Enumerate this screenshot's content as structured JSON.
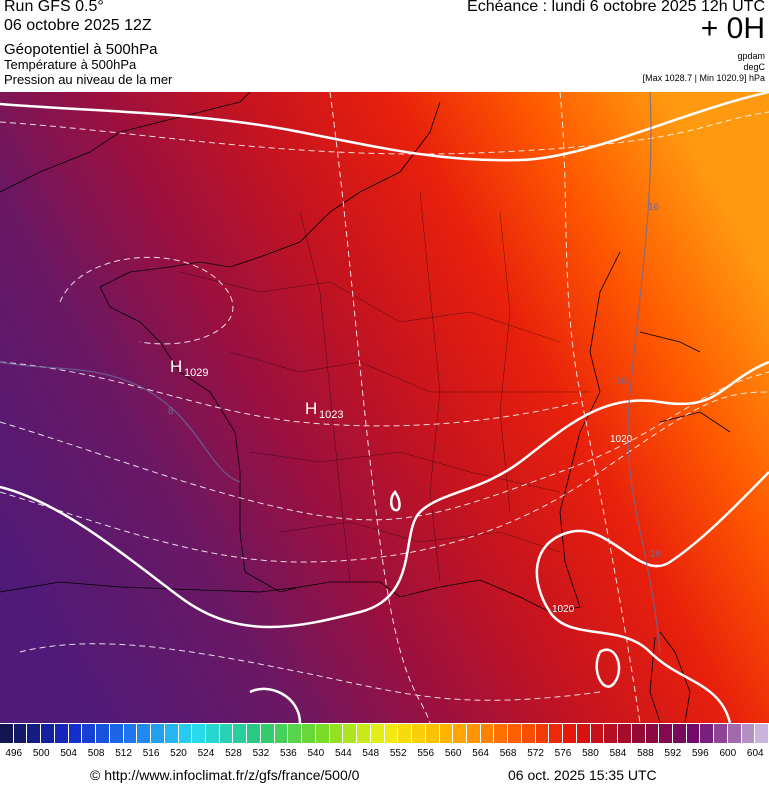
{
  "header": {
    "run": "Run GFS 0.5°",
    "date": "06 octobre 2025 12Z",
    "field1": "Géopotentiel à 500hPa",
    "field2": "Température à 500hPa",
    "field3": "Pression au niveau de la mer",
    "valid": "Echéance : lundi 6 octobre 2025 12h UTC",
    "lead": "+ 0H",
    "unit1": "gpdam",
    "unit2": "degC",
    "range": "[Max 1028.7 | Min 1020.9] hPa"
  },
  "map": {
    "highs": [
      {
        "letter": "H",
        "value": "1029"
      },
      {
        "letter": "H",
        "value": "1023"
      }
    ],
    "contour_labels": [
      "16",
      "8",
      "16",
      "1020",
      "16",
      "1020"
    ]
  },
  "colorbar": {
    "ticks": [
      496,
      500,
      504,
      508,
      512,
      516,
      520,
      524,
      528,
      532,
      536,
      540,
      544,
      548,
      552,
      556,
      560,
      564,
      568,
      572,
      576,
      580,
      584,
      588,
      592,
      596,
      600,
      604
    ]
  },
  "footer": {
    "url": "© http://www.infoclimat.fr/z/gfs/france/500/0",
    "timestamp": "06 oct. 2025 15:35 UTC"
  }
}
